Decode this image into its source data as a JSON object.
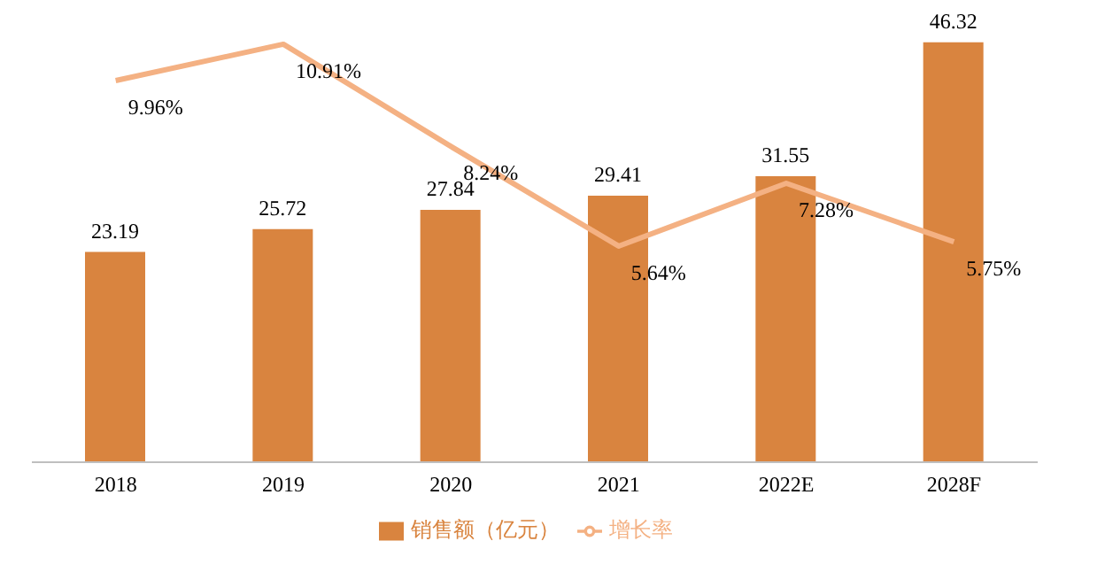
{
  "chart_data": {
    "type": "bar",
    "categories": [
      "2018",
      "2019",
      "2020",
      "2021",
      "2022E",
      "2028F"
    ],
    "series": [
      {
        "name": "销售额（亿元）",
        "color": "#d9843f",
        "values": [
          23.19,
          25.72,
          27.84,
          29.41,
          31.55,
          46.32
        ],
        "value_labels": [
          "23.19",
          "25.72",
          "27.84",
          "29.41",
          "31.55",
          "46.32"
        ]
      },
      {
        "name": "增长率",
        "type": "line",
        "axis": "y2",
        "color": "#f4b183",
        "values": [
          9.96,
          10.91,
          8.24,
          5.64,
          7.28,
          5.75
        ],
        "value_labels": [
          "9.96%",
          "10.91%",
          "8.24%",
          "5.64%",
          "7.28%",
          "5.75%"
        ]
      }
    ],
    "ylim": [
      0,
      46.5
    ],
    "y2lim": [
      0,
      11
    ],
    "tick_labels": "x",
    "legend": "bottom",
    "marker": "none",
    "line_style": "solid"
  }
}
